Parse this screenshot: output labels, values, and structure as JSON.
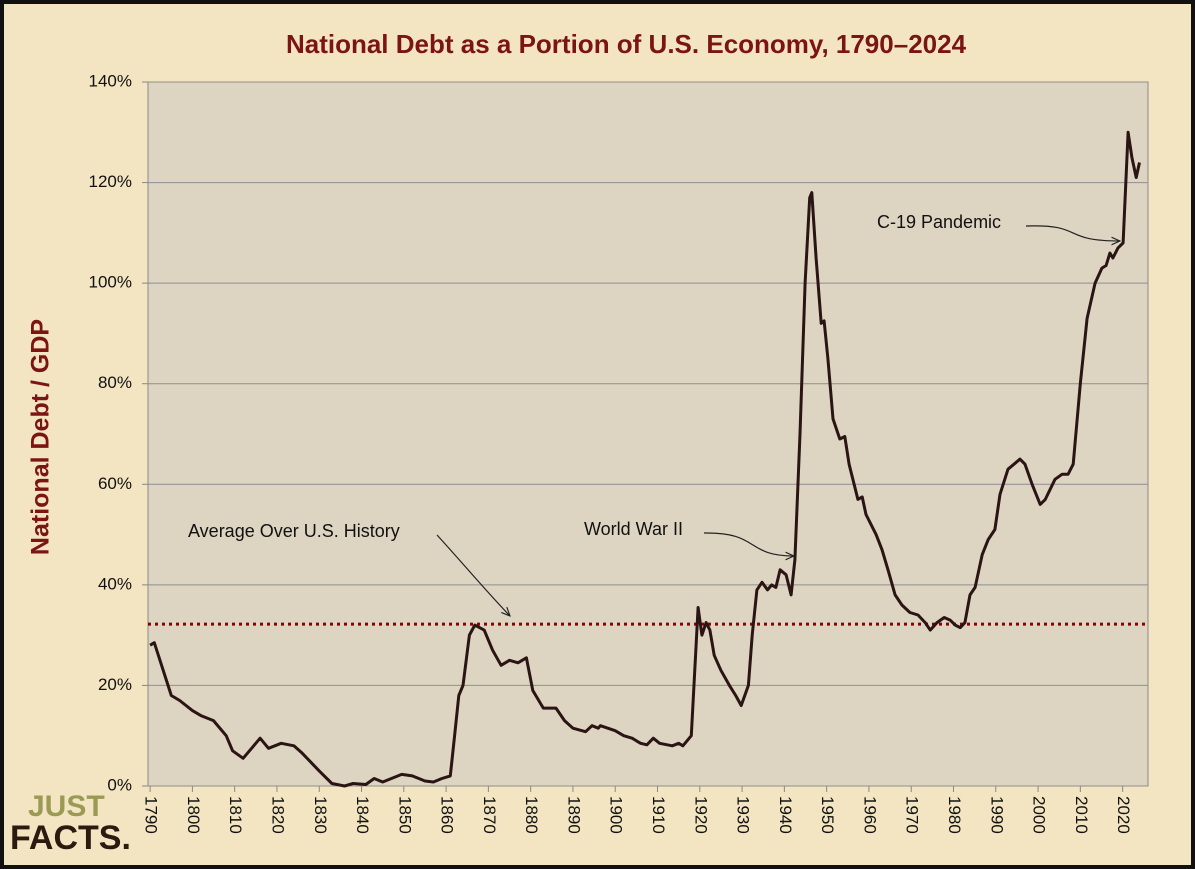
{
  "chart_data": {
    "type": "line",
    "title": "National Debt as a Portion of U.S. Economy, 1790–2024",
    "y_label": "National Debt / GDP",
    "xlim": [
      1789.5,
      2026
    ],
    "xticks": [
      1790,
      1800,
      1810,
      1820,
      1830,
      1840,
      1850,
      1860,
      1870,
      1880,
      1890,
      1900,
      1910,
      1920,
      1930,
      1940,
      1950,
      1960,
      1970,
      1980,
      1990,
      2000,
      2010,
      2020
    ],
    "ylim": [
      0,
      140
    ],
    "yticks": [
      {
        "value": 0,
        "label": "0%"
      },
      {
        "value": 20,
        "label": "20%"
      },
      {
        "value": 40,
        "label": "40%"
      },
      {
        "value": 60,
        "label": "60%"
      },
      {
        "value": 80,
        "label": "80%"
      },
      {
        "value": 100,
        "label": "100%"
      },
      {
        "value": 120,
        "label": "120%"
      },
      {
        "value": 140,
        "label": "140%"
      }
    ],
    "grid": true,
    "average": 32.2,
    "average_color": "#8b0000",
    "series": [
      {
        "name": "National Debt / GDP",
        "color": "#2a1414",
        "x": [
          1790,
          1791,
          1795,
          1797,
          1800,
          1802,
          1805,
          1808,
          1809.5,
          1812,
          1814,
          1816,
          1818,
          1821,
          1824,
          1826,
          1830,
          1833,
          1836,
          1838,
          1841,
          1843,
          1845,
          1849.5,
          1852,
          1855,
          1857,
          1859,
          1861,
          1862,
          1863,
          1864,
          1865.5,
          1866.8,
          1869,
          1871,
          1873,
          1875,
          1877,
          1879,
          1880.5,
          1883,
          1886,
          1888,
          1890,
          1893,
          1894.5,
          1896,
          1896.5,
          1900,
          1902,
          1904,
          1906,
          1907.5,
          1909,
          1910.5,
          1913.5,
          1915,
          1916,
          1918,
          1919.6,
          1920.5,
          1921.5,
          1922.4,
          1923.4,
          1925,
          1927,
          1928.5,
          1929.8,
          1931.5,
          1932.4,
          1933.5,
          1934.7,
          1936,
          1937,
          1938,
          1939,
          1940.4,
          1941.6,
          1942.5,
          1943.7,
          1944.9,
          1946,
          1946.5,
          1947.5,
          1948.7,
          1949.4,
          1950.3,
          1951.5,
          1953.1,
          1954.3,
          1955.3,
          1957.4,
          1958.4,
          1959.3,
          1961.7,
          1963.1,
          1964.5,
          1966.2,
          1967.8,
          1969.7,
          1971.6,
          1973.3,
          1974.5,
          1976.1,
          1977.8,
          1979.2,
          1980.4,
          1981.6,
          1982.7,
          1983.9,
          1985.1,
          1986.8,
          1988.2,
          1989.8,
          1991,
          1992.9,
          1994.3,
          1995.7,
          1996.9,
          1998.6,
          2000.5,
          2001.7,
          2004,
          2005.7,
          2007.1,
          2008.3,
          2010,
          2011.6,
          2013.5,
          2015.1,
          2016.1,
          2017,
          2017.7,
          2018.9,
          2020.1,
          2021.3,
          2022.2,
          2023.2,
          2024
        ],
        "values": [
          28,
          28.5,
          18,
          17,
          15,
          14,
          13,
          10,
          7,
          5.5,
          7.5,
          9.5,
          7.5,
          8.5,
          8,
          6.5,
          3,
          0.5,
          0,
          0.5,
          0.3,
          1.5,
          0.8,
          2.3,
          2,
          1,
          0.8,
          1.5,
          2,
          10,
          18,
          20,
          30,
          32,
          31,
          27,
          24,
          25,
          24.5,
          25.5,
          19,
          15.5,
          15.5,
          13,
          11.5,
          10.8,
          12,
          11.5,
          12,
          11,
          10,
          9.5,
          8.5,
          8.2,
          9.5,
          8.5,
          8,
          8.5,
          8,
          10,
          35.5,
          30,
          32.5,
          31,
          26,
          23,
          20,
          18,
          16,
          20,
          30,
          39,
          40.5,
          39,
          40,
          39.5,
          43,
          42,
          38,
          45,
          70,
          100,
          117,
          118,
          105,
          92,
          92.5,
          85,
          73,
          69,
          69.5,
          64,
          57,
          57.5,
          54,
          50,
          47,
          43,
          38,
          36,
          34.5,
          34,
          32.5,
          31,
          32.5,
          33.5,
          33,
          32,
          31.5,
          32.5,
          38,
          39.5,
          46,
          49,
          51,
          58,
          63,
          64,
          65,
          64,
          60,
          56,
          57,
          61,
          62,
          62,
          64,
          80,
          93,
          100,
          103,
          103.5,
          106,
          105,
          107,
          108,
          130,
          125,
          121,
          124
        ]
      }
    ],
    "annotations": [
      "Average Over U.S. History",
      "World War II",
      "C-19 Pandemic"
    ],
    "logo": [
      "JUST",
      "FACTS."
    ]
  }
}
